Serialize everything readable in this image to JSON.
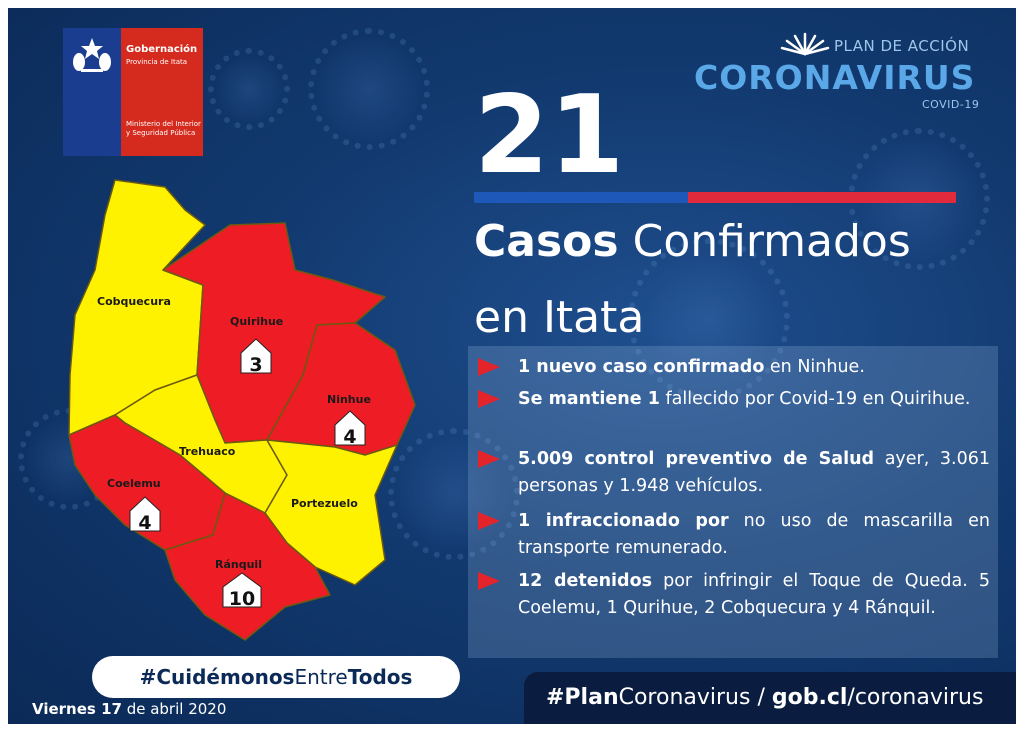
{
  "logo": {
    "line1": "Gobernación",
    "line2": "Provincia de Itata",
    "line3": "Ministerio del Interior y Seguridad Pública",
    "colors": {
      "blue": "#1a3d8f",
      "red": "#d52b1e"
    }
  },
  "brand": {
    "plan": "PLAN DE ACCIÓN",
    "name": "CORONAVIRUS",
    "covid": "COVID-19",
    "color": "#5aa8e8"
  },
  "headline": {
    "count": "21",
    "title_bold": "Casos",
    "title_rest": "Confirmados",
    "title_line2": "en Itata"
  },
  "items": [
    {
      "bold": "1 nuevo caso confirmado",
      "rest": " en Ninhue."
    },
    {
      "bold": "Se mantiene 1",
      "rest": " fallecido por Covid-19 en Quirihue."
    },
    {
      "bold": "5.009 control preventivo de Salud",
      "rest": " ayer, 3.061 personas y 1.948 vehículos."
    },
    {
      "bold": "1 infraccionado por",
      "rest": " no uso de mascarilla en transporte remunerado."
    },
    {
      "bold": "12 detenidos",
      "rest": " por infringir el Toque de Queda. 5 Coelemu, 1 Qurihue, 2 Cobquecura y 4 Ránquil."
    }
  ],
  "map": {
    "communes": [
      {
        "name": "Cobquecura",
        "status": "no-cases"
      },
      {
        "name": "Quirihue",
        "status": "cases",
        "cases": "3"
      },
      {
        "name": "Ninhue",
        "status": "cases",
        "cases": "4"
      },
      {
        "name": "Trehuaco",
        "status": "no-cases"
      },
      {
        "name": "Coelemu",
        "status": "cases",
        "cases": "4"
      },
      {
        "name": "Portezuelo",
        "status": "no-cases"
      },
      {
        "name": "Ránquil",
        "status": "cases",
        "cases": "10"
      }
    ],
    "colors": {
      "cases": "#ee1c25",
      "no_cases": "#fff200"
    }
  },
  "hashtag": {
    "pre": "#",
    "bold1": "Cuidémonos",
    "mid": "Entre",
    "bold2": "Todos"
  },
  "date": {
    "pre": "Viernes ",
    "day": "17",
    "rest": " de abril 2020"
  },
  "footer": {
    "bold1": "#Plan",
    "mid": "Coronavirus / ",
    "bold2": "gob.cl",
    "rest": "/coronavirus"
  }
}
